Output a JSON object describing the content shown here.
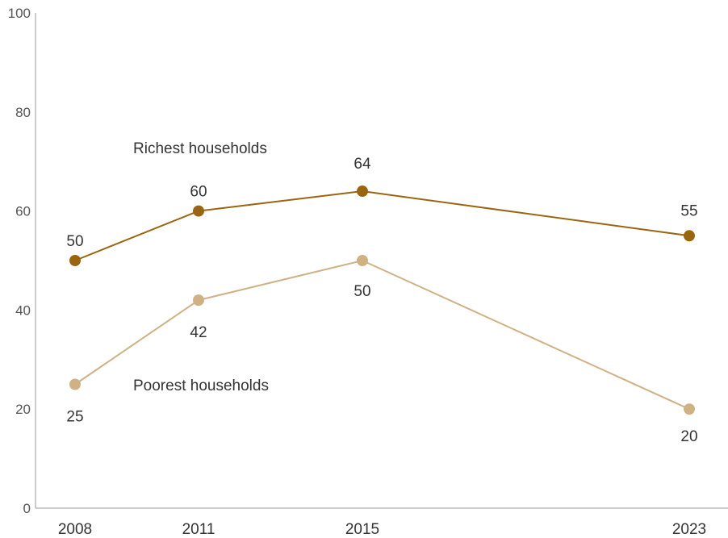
{
  "chart_data": {
    "type": "line",
    "title": "",
    "xlabel": "",
    "ylabel": "",
    "x": [
      2008,
      2011,
      2015,
      2023
    ],
    "x_tick_labels": [
      "2008",
      "2011",
      "2015",
      "2023"
    ],
    "ylim": [
      0,
      100
    ],
    "y_ticks": [
      0,
      20,
      40,
      60,
      80,
      100
    ],
    "y_tick_labels": [
      "0",
      "20",
      "40",
      "60",
      "80",
      "100"
    ],
    "grid": false,
    "legend": "inline labels",
    "series": [
      {
        "name": "Richest households",
        "values": [
          50,
          60,
          64,
          55
        ],
        "labels": [
          "50",
          "60",
          "64",
          "55"
        ],
        "color": "#9a6410"
      },
      {
        "name": "Poorest households",
        "values": [
          25,
          42,
          50,
          20
        ],
        "labels": [
          "25",
          "42",
          "50",
          "20"
        ],
        "color": "#cfb184"
      }
    ]
  }
}
